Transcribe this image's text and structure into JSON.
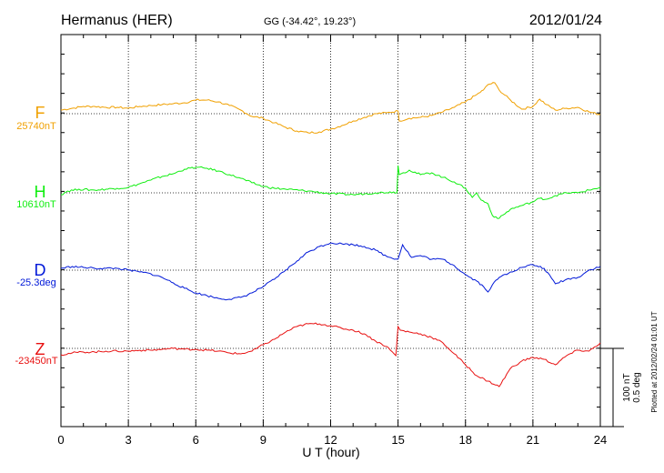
{
  "header": {
    "station": "Hermanus (HER)",
    "coords": "GG (-34.42°,  19.23°)",
    "date": "2012/01/24"
  },
  "footer": {
    "plotted": "Plotted at 2012/02/24 01:01  UT"
  },
  "chart_data": {
    "type": "line",
    "title": "Hermanus (HER)",
    "xlabel": "U T (hour)",
    "ylabel": "",
    "xlim": [
      0,
      24
    ],
    "x_ticks": [
      "0",
      "3",
      "6",
      "9",
      "12",
      "15",
      "18",
      "21",
      "24"
    ],
    "grid": true,
    "scale_bar": {
      "label_top": "100 nT",
      "label_bottom": "0.5 deg"
    },
    "series": [
      {
        "name": "F",
        "baseline_label": "25740nT",
        "color": "#f0a000",
        "x": [
          0,
          0.5,
          1,
          1.5,
          2,
          2.5,
          3,
          3.5,
          4,
          4.5,
          5,
          5.5,
          6,
          6.5,
          7,
          7.5,
          8,
          8.5,
          9,
          9.5,
          10,
          10.5,
          11,
          11.5,
          12,
          12.5,
          13,
          13.5,
          14,
          14.5,
          15,
          15.05,
          15.5,
          16,
          16.5,
          17,
          17.5,
          18,
          18.5,
          18.8,
          19,
          19.3,
          19.5,
          20,
          20.5,
          21,
          21.3,
          21.6,
          22,
          22.5,
          23,
          23.5,
          24
        ],
        "values": [
          4,
          6,
          8,
          8,
          7,
          7,
          6,
          8,
          9,
          10,
          11,
          12,
          15,
          15,
          13,
          9,
          4,
          -3,
          -5,
          -10,
          -15,
          -19,
          -21,
          -20,
          -17,
          -13,
          -8,
          -4,
          0,
          1,
          3,
          -8,
          -5,
          -4,
          -2,
          2,
          7,
          13,
          21,
          26,
          32,
          34,
          26,
          15,
          5,
          8,
          16,
          10,
          4,
          6,
          7,
          2,
          -1
        ]
      },
      {
        "name": "H",
        "baseline_label": "10610nT",
        "color": "#10ee10",
        "x": [
          0,
          0.3,
          0.8,
          1.5,
          2.5,
          3,
          3.5,
          4,
          4.5,
          5,
          5.5,
          6,
          6.5,
          7,
          7.5,
          8,
          8.5,
          9,
          9.5,
          10,
          11,
          12,
          13,
          14,
          14.8,
          14.95,
          15,
          15.05,
          15.5,
          16,
          16.5,
          17,
          17.5,
          18,
          18.3,
          18.5,
          18.7,
          19,
          19.2,
          19.5,
          20,
          20.5,
          21,
          21.3,
          21.6,
          22,
          22.5,
          23,
          23.5,
          24
        ],
        "values": [
          -2,
          2,
          4,
          3,
          5,
          6,
          10,
          14,
          18,
          21,
          26,
          28,
          27,
          24,
          20,
          16,
          11,
          7,
          5,
          4,
          2,
          -1,
          -2,
          0,
          1,
          0,
          30,
          20,
          25,
          20,
          22,
          17,
          12,
          5,
          -5,
          0,
          -8,
          -12,
          -25,
          -28,
          -18,
          -14,
          -10,
          -6,
          -7,
          -3,
          0,
          0,
          3,
          6
        ]
      },
      {
        "name": "D",
        "baseline_label": "-25.3deg",
        "color": "#0018d8",
        "x": [
          0,
          0.5,
          1,
          1.5,
          2,
          2.5,
          3,
          3.5,
          4,
          4.5,
          5,
          5.5,
          6,
          6.5,
          7,
          7.5,
          8,
          8.5,
          9,
          9.5,
          10,
          10.5,
          11,
          11.5,
          12,
          12.5,
          13,
          13.5,
          14,
          14.5,
          15,
          15.2,
          15.6,
          16,
          16.5,
          17,
          17.5,
          18,
          18.5,
          18.8,
          19,
          19.2,
          19.5,
          20,
          20.5,
          21,
          21.5,
          22,
          22.5,
          23,
          23.5,
          24
        ],
        "values": [
          2,
          4,
          3,
          2,
          2,
          2,
          0,
          -2,
          -4,
          -8,
          -14,
          -20,
          -25,
          -28,
          -31,
          -32,
          -30,
          -25,
          -18,
          -10,
          0,
          10,
          20,
          26,
          30,
          29,
          28,
          26,
          22,
          15,
          12,
          28,
          14,
          16,
          12,
          12,
          5,
          -5,
          -12,
          -18,
          -24,
          -16,
          -8,
          -2,
          3,
          6,
          2,
          -15,
          -10,
          -8,
          0,
          4
        ]
      },
      {
        "name": "Z",
        "baseline_label": "-23450nT",
        "color": "#e81010",
        "x": [
          0,
          0.5,
          1,
          1.5,
          2,
          2.5,
          3,
          3.5,
          4,
          4.5,
          5,
          5.5,
          6,
          6.5,
          7,
          7.5,
          8,
          8.5,
          9,
          9.5,
          10,
          10.5,
          11,
          11.5,
          12,
          12.5,
          13,
          13.5,
          14,
          14.5,
          14.9,
          15,
          15.1,
          15.5,
          16,
          16.5,
          17,
          17.5,
          18,
          18.5,
          19,
          19.5,
          20,
          20.5,
          21,
          21.5,
          22,
          22.5,
          23,
          23.5,
          24
        ],
        "values": [
          -7,
          -5,
          -4,
          -4,
          -3,
          -3,
          -3,
          -2,
          -2,
          -1,
          0,
          -1,
          -1,
          -2,
          -3,
          -5,
          -6,
          -3,
          4,
          10,
          18,
          24,
          27,
          27,
          25,
          22,
          20,
          16,
          8,
          2,
          -8,
          24,
          20,
          18,
          16,
          12,
          6,
          -6,
          -18,
          -30,
          -36,
          -42,
          -22,
          -14,
          -10,
          -12,
          -18,
          -8,
          -2,
          -3,
          6
        ]
      }
    ]
  }
}
